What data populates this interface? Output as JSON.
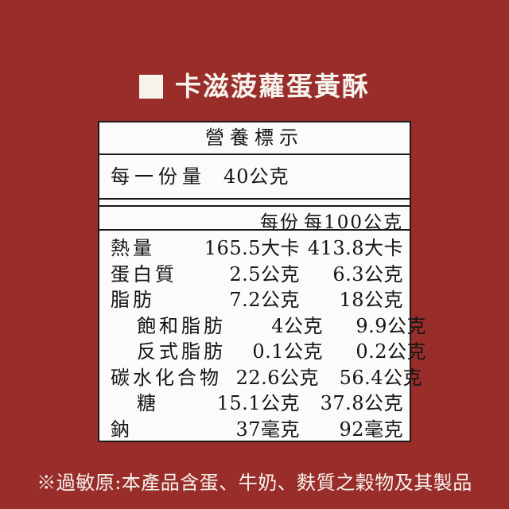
{
  "page": {
    "background_color": "#992D2A",
    "accent_text_color": "#F6F2EC"
  },
  "header": {
    "bullet_icon": "square-bullet",
    "title": "卡滋菠蘿蛋黃酥"
  },
  "nutrition_table": {
    "title": "營養標示",
    "serving_label": "每一份量",
    "serving_value": "40公克",
    "columns": {
      "per_serving": "每份",
      "per_100g": "每100公克"
    },
    "rows": [
      {
        "label": "熱量",
        "indent": false,
        "per_serving": "165.5大卡",
        "per_100g": "413.8大卡"
      },
      {
        "label": "蛋白質",
        "indent": false,
        "per_serving": "2.5公克",
        "per_100g": "6.3公克"
      },
      {
        "label": "脂肪",
        "indent": false,
        "per_serving": "7.2公克",
        "per_100g": "18公克"
      },
      {
        "label": "飽和脂肪",
        "indent": true,
        "per_serving": "4公克",
        "per_100g": "9.9公克"
      },
      {
        "label": "反式脂肪",
        "indent": true,
        "per_serving": "0.1公克",
        "per_100g": "0.2公克"
      },
      {
        "label": "碳水化合物",
        "indent": false,
        "per_serving": "22.6公克",
        "per_100g": "56.4公克"
      },
      {
        "label": "糖",
        "indent": true,
        "per_serving": "15.1公克",
        "per_100g": "37.8公克"
      },
      {
        "label": "鈉",
        "indent": false,
        "per_serving": "37毫克",
        "per_100g": "92毫克"
      }
    ]
  },
  "footer": {
    "allergen_note": "※過敏原:本產品含蛋、牛奶、麩質之穀物及其製品"
  }
}
